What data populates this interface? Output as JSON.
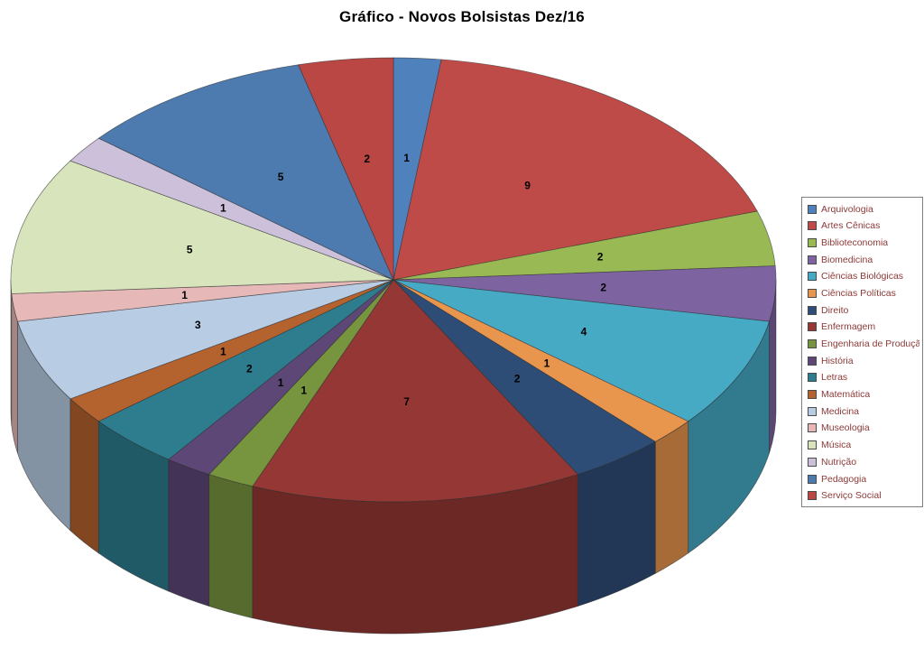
{
  "title": "Gráfico - Novos Bolsistas Dez/16",
  "chart_data": {
    "type": "pie",
    "style": "3d-pie",
    "title": "Gráfico - Novos Bolsistas Dez/16",
    "total": 50,
    "start_angle_deg": 0,
    "direction": "clockwise",
    "legend_position": "right",
    "data_labels": "value",
    "categories": [
      "Arquivologia",
      "Artes Cênicas",
      "Biblioteconomia",
      "Biomedicina",
      "Ciências Biológicas",
      "Ciências Políticas",
      "Direito",
      "Enfermagem",
      "Engenharia de Produção",
      "História",
      "Letras",
      "Matemática",
      "Medicina",
      "Museologia",
      "Música",
      "Nutrição",
      "Pedagogia",
      "Serviço Social"
    ],
    "values": [
      1,
      9,
      2,
      2,
      4,
      1,
      2,
      7,
      1,
      1,
      2,
      1,
      3,
      1,
      5,
      1,
      5,
      2
    ],
    "colors": [
      "#4F81BD",
      "#BE4B48",
      "#98B954",
      "#7E63A1",
      "#46AAC5",
      "#E8954E",
      "#2E4D76",
      "#953734",
      "#77943F",
      "#5D4777",
      "#2E7D8F",
      "#B4622E",
      "#B8CCE4",
      "#E6B9B8",
      "#D7E4BC",
      "#CCC0DA",
      "#4D7AAF",
      "#BA4743"
    ]
  }
}
